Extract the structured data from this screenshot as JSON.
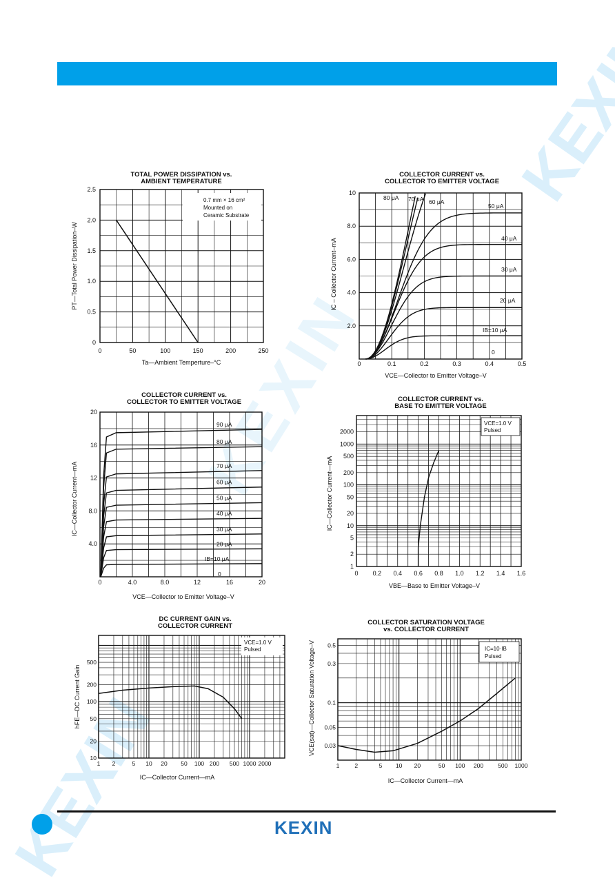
{
  "watermark": {
    "corner": "KEXIN",
    "center": "KEXIN",
    "bottom": "KEXIN"
  },
  "brand": {
    "logo_text": "KEXIN",
    "accent_color": "#00a0e9",
    "logo_color": "#1f6fb8"
  },
  "chart_data": [
    {
      "id": "c1",
      "type": "line",
      "title": [
        "TOTAL POWER DISSIPATION vs.",
        "AMBIENT TEMPERATURE"
      ],
      "xlabel": "Ta—Ambient Temperture–°C",
      "ylabel": "PT—Total Power Dissipation–W",
      "xlim": [
        0,
        250
      ],
      "ylim": [
        0,
        2.5
      ],
      "xticks": [
        "0",
        "50",
        "100",
        "150",
        "200",
        "250"
      ],
      "yticks": [
        "0",
        "0.5",
        "1.0",
        "1.5",
        "2.0",
        "2.5"
      ],
      "annotation": [
        "0.7 mm × 16 cm²",
        "Mounted on",
        "Ceramic Substrate"
      ],
      "series": [
        {
          "x": [
            25,
            150
          ],
          "y": [
            2.0,
            0
          ]
        }
      ]
    },
    {
      "id": "c2",
      "type": "line",
      "title": [
        "COLLECTOR CURRENT vs.",
        "COLLECTOR TO EMITTER VOLTAGE"
      ],
      "xlabel": "VCE—Collector to Emitter Voltage–V",
      "ylabel": "IC – Collector Current–mA",
      "xlim": [
        0,
        0.5
      ],
      "ylim": [
        0,
        10
      ],
      "xticks": [
        "0",
        "0.1",
        "0.2",
        "0.3",
        "0.4",
        "0.5"
      ],
      "yticks": [
        "",
        "2.0",
        "4.0",
        "6.0",
        "8.0",
        "10"
      ],
      "series": [
        {
          "name": "IB=10 μA",
          "sat": 1.4,
          "knee": 0.15
        },
        {
          "name": "20 μA",
          "sat": 3.1,
          "knee": 0.18
        },
        {
          "name": "30 μA",
          "sat": 5.0,
          "knee": 0.2
        },
        {
          "name": "40 μA",
          "sat": 6.9,
          "knee": 0.22
        },
        {
          "name": "50 μA",
          "sat": 8.8,
          "knee": 0.25
        },
        {
          "name": "60 μA",
          "sat": 14,
          "knee": 0.3
        },
        {
          "name": "70 μA",
          "sat": 18,
          "knee": 0.33
        },
        {
          "name": "80 μA",
          "sat": 22,
          "knee": 0.36
        }
      ],
      "zero_label": "0"
    },
    {
      "id": "c3",
      "type": "line",
      "title": [
        "COLLECTOR CURRENT vs.",
        "COLLECTOR TO EMITTER VOLTAGE"
      ],
      "xlabel": "VCE—Collector to Emitter Voltage–V",
      "ylabel": "IC—Collector Current—mA",
      "xlim": [
        0,
        20
      ],
      "ylim": [
        0,
        20
      ],
      "xticks": [
        "0",
        "4.0",
        "8.0",
        "12",
        "16",
        "20"
      ],
      "yticks": [
        "",
        "4.0",
        "8.0",
        "12",
        "16",
        "20"
      ],
      "series": [
        {
          "name": "IB=10 μA",
          "values": [
            1.5,
            1.6
          ]
        },
        {
          "name": "20 μA",
          "values": [
            3.3,
            3.4
          ]
        },
        {
          "name": "30 μA",
          "values": [
            5.0,
            5.2
          ]
        },
        {
          "name": "40 μA",
          "values": [
            6.9,
            7.1
          ]
        },
        {
          "name": "50 μA",
          "values": [
            8.7,
            9.0
          ]
        },
        {
          "name": "60 μA",
          "values": [
            10.5,
            10.9
          ]
        },
        {
          "name": "70 μA",
          "values": [
            12.5,
            12.9
          ]
        },
        {
          "name": "80 μA",
          "values": [
            15.5,
            15.8
          ]
        },
        {
          "name": "90 μA",
          "values": [
            17.5,
            17.9
          ]
        }
      ],
      "zero_label": "0"
    },
    {
      "id": "c4",
      "type": "line",
      "title": [
        "COLLECTOR CURRENT vs.",
        "BASE TO EMITTER VOLTAGE"
      ],
      "xlabel": "VBE—Base to Emitter Voltage–V",
      "ylabel": "IC—Collector Current—mA",
      "xlim": [
        0,
        1.6
      ],
      "ylim": [
        1,
        5000
      ],
      "yscale": "log",
      "xticks": [
        "0",
        "0.2",
        "0.4",
        "0.6",
        "0.8",
        "1.0",
        "1.2",
        "1.4",
        "1.6"
      ],
      "yticks": [
        {
          "v": 1,
          "label": "1"
        },
        {
          "v": 2,
          "label": "2"
        },
        {
          "v": 5,
          "label": "5"
        },
        {
          "v": 10,
          "label": "10"
        },
        {
          "v": 20,
          "label": "20"
        },
        {
          "v": 50,
          "label": "50"
        },
        {
          "v": 100,
          "label": "100"
        },
        {
          "v": 200,
          "label": "200"
        },
        {
          "v": 500,
          "label": "500"
        },
        {
          "v": 1000,
          "label": "1000"
        },
        {
          "v": 2000,
          "label": "2000"
        }
      ],
      "annotation": [
        "VCE=1.0 V",
        "Pulsed"
      ],
      "series": [
        {
          "x": [
            0.6,
            0.6,
            0.62,
            0.66,
            0.7,
            0.75,
            0.8
          ],
          "y": [
            1,
            3,
            10,
            50,
            150,
            350,
            700
          ]
        }
      ]
    },
    {
      "id": "c5",
      "type": "line",
      "title": [
        "DC CURRENT GAIN vs.",
        "COLLECTOR CURRENT"
      ],
      "xlabel": "IC—Collector Current—mA",
      "ylabel": "hFE—DC Current Gain",
      "xlim": [
        1,
        5000
      ],
      "ylim": [
        10,
        1500
      ],
      "xscale": "log",
      "yscale": "log",
      "xticks": [
        {
          "v": 1,
          "label": "1"
        },
        {
          "v": 2,
          "label": "2"
        },
        {
          "v": 5,
          "label": "5"
        },
        {
          "v": 10,
          "label": "10"
        },
        {
          "v": 20,
          "label": "20"
        },
        {
          "v": 50,
          "label": "50"
        },
        {
          "v": 100,
          "label": "100"
        },
        {
          "v": 200,
          "label": "200"
        },
        {
          "v": 500,
          "label": "500"
        },
        {
          "v": 1000,
          "label": "1000"
        },
        {
          "v": 2000,
          "label": "2000"
        }
      ],
      "yticks": [
        {
          "v": 10,
          "label": "10"
        },
        {
          "v": 20,
          "label": "20"
        },
        {
          "v": 50,
          "label": "50"
        },
        {
          "v": 100,
          "label": "100"
        },
        {
          "v": 200,
          "label": "200"
        },
        {
          "v": 500,
          "label": "500"
        }
      ],
      "annotation": [
        "VCE=1.0 V",
        "Pulsed"
      ],
      "series": [
        {
          "x": [
            1,
            3,
            10,
            30,
            80,
            150,
            300,
            500,
            700
          ],
          "y": [
            140,
            160,
            175,
            185,
            190,
            170,
            120,
            75,
            50
          ]
        }
      ]
    },
    {
      "id": "c6",
      "type": "line",
      "title": [
        "COLLECTOR SATURATION VOLTAGE",
        "vs. COLLECTOR CURRENT"
      ],
      "xlabel": "IC—Collector Current—mA",
      "ylabel": "VCE(sat)—Collector Saturation Voltage–V",
      "xlim": [
        1,
        1000
      ],
      "ylim": [
        0.02,
        0.6
      ],
      "xscale": "log",
      "yscale": "log",
      "xticks": [
        {
          "v": 1,
          "label": "1"
        },
        {
          "v": 2,
          "label": "2"
        },
        {
          "v": 5,
          "label": "5"
        },
        {
          "v": 10,
          "label": "10"
        },
        {
          "v": 20,
          "label": "20"
        },
        {
          "v": 50,
          "label": "50"
        },
        {
          "v": 100,
          "label": "100"
        },
        {
          "v": 200,
          "label": "200"
        },
        {
          "v": 500,
          "label": "500"
        },
        {
          "v": 1000,
          "label": "1000"
        }
      ],
      "yticks": [
        {
          "v": 0.03,
          "label": "0.03"
        },
        {
          "v": 0.05,
          "label": "0.05"
        },
        {
          "v": 0.1,
          "label": "0.1"
        },
        {
          "v": 0.3,
          "label": "0.3"
        },
        {
          "v": 0.5,
          "label": "0.5"
        }
      ],
      "annotation": [
        "IC=10·IB",
        "Pulsed"
      ],
      "series": [
        {
          "x": [
            1,
            2,
            4,
            8,
            20,
            50,
            100,
            200,
            400,
            800
          ],
          "y": [
            0.03,
            0.027,
            0.025,
            0.026,
            0.032,
            0.045,
            0.06,
            0.085,
            0.13,
            0.2
          ]
        }
      ]
    }
  ]
}
